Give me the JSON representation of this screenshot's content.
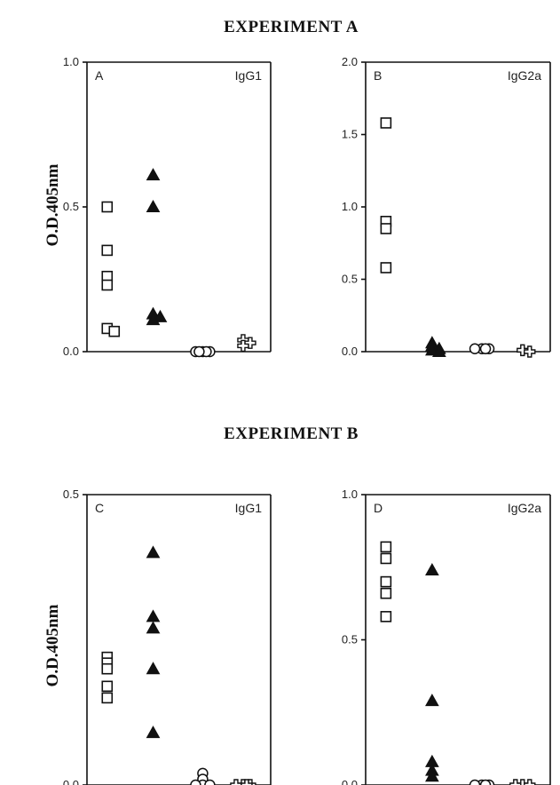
{
  "experiments": [
    {
      "title": "EXPERIMENT A",
      "ylabel": "O.D.405nm"
    },
    {
      "title": "EXPERIMENT B",
      "ylabel": "O.D.405nm"
    }
  ],
  "chart_data": [
    {
      "type": "scatter",
      "panel": "A",
      "label": "IgG1",
      "ylim": [
        0,
        1.0
      ],
      "yticks": [
        "0.0",
        "0.5",
        "1.0"
      ],
      "groups": [
        {
          "marker": "open-square",
          "values": [
            0.5,
            0.35,
            0.26,
            0.23,
            0.08,
            0.07
          ]
        },
        {
          "marker": "filled-triangle",
          "values": [
            0.61,
            0.5,
            0.13,
            0.12,
            0.11
          ]
        },
        {
          "marker": "open-circle",
          "values": [
            0.0,
            0.0,
            0.0,
            0.0,
            0.0
          ]
        },
        {
          "marker": "open-cross",
          "values": [
            0.04,
            0.03,
            0.02
          ]
        }
      ]
    },
    {
      "type": "scatter",
      "panel": "B",
      "label": "IgG2a",
      "ylim": [
        0,
        2.0
      ],
      "yticks": [
        "0.0",
        "0.5",
        "1.0",
        "1.5",
        "2.0"
      ],
      "groups": [
        {
          "marker": "open-square",
          "values": [
            1.58,
            0.9,
            0.85,
            0.58
          ]
        },
        {
          "marker": "filled-triangle",
          "values": [
            0.06,
            0.04,
            0.02,
            0.01,
            0.0
          ]
        },
        {
          "marker": "open-circle",
          "values": [
            0.02,
            0.02,
            0.02,
            0.02
          ]
        },
        {
          "marker": "open-cross",
          "values": [
            0.01,
            0.0
          ]
        }
      ]
    },
    {
      "type": "scatter",
      "panel": "C",
      "label": "IgG1",
      "ylim": [
        0,
        0.5
      ],
      "yticks": [
        "0.0",
        "0.5"
      ],
      "groups": [
        {
          "marker": "open-square",
          "values": [
            0.22,
            0.21,
            0.2,
            0.17,
            0.15
          ]
        },
        {
          "marker": "filled-triangle",
          "values": [
            0.4,
            0.29,
            0.27,
            0.2,
            0.09
          ]
        },
        {
          "marker": "open-circle",
          "values": [
            0.02,
            0.01,
            0.0,
            0.0,
            0.0
          ]
        },
        {
          "marker": "open-cross",
          "values": [
            0.0,
            0.0,
            0.0,
            0.0
          ]
        }
      ]
    },
    {
      "type": "scatter",
      "panel": "D",
      "label": "IgG2a",
      "ylim": [
        0,
        1.0
      ],
      "yticks": [
        "0.0",
        "0.5",
        "1.0"
      ],
      "groups": [
        {
          "marker": "open-square",
          "values": [
            0.82,
            0.78,
            0.7,
            0.66,
            0.58
          ]
        },
        {
          "marker": "filled-triangle",
          "values": [
            0.74,
            0.29,
            0.08,
            0.05,
            0.03
          ]
        },
        {
          "marker": "open-circle",
          "values": [
            0.0,
            0.0,
            0.0,
            0.0
          ]
        },
        {
          "marker": "open-cross",
          "values": [
            0.0,
            0.0,
            0.0
          ]
        }
      ]
    }
  ]
}
